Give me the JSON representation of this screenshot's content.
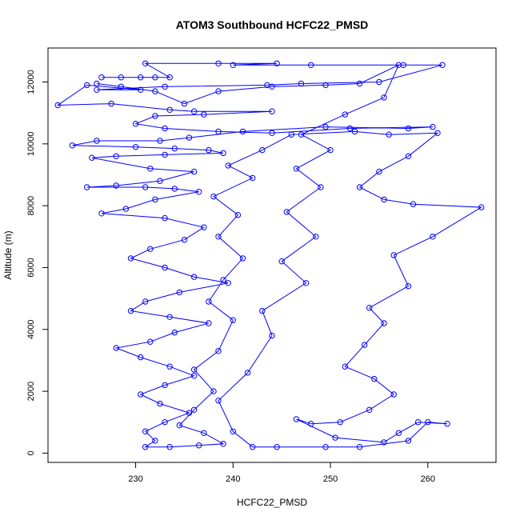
{
  "chart_data": {
    "type": "line",
    "title": "ATOM3 Southbound HCFC22_PMSD",
    "xlabel": "HCFC22_PMSD",
    "ylabel": "Altitude (m)",
    "xlim": [
      221,
      267
    ],
    "ylim": [
      -300,
      13100
    ],
    "xticks": [
      230,
      240,
      250,
      260
    ],
    "yticks": [
      0,
      2000,
      4000,
      6000,
      8000,
      10000,
      12000
    ],
    "grid": false,
    "series_color": "#0000ff",
    "marker": "open-circle",
    "series": [
      {
        "name": "",
        "points": [
          [
            232.0,
            12150
          ],
          [
            226.5,
            12150
          ],
          [
            228.5,
            12150
          ],
          [
            230.5,
            12150
          ],
          [
            233.5,
            12150
          ],
          [
            231.0,
            12600
          ],
          [
            238.5,
            12600
          ],
          [
            244.5,
            12600
          ],
          [
            240.0,
            12550
          ],
          [
            248.0,
            12550
          ],
          [
            257.5,
            12550
          ],
          [
            261.5,
            12550
          ],
          [
            255.0,
            12000
          ],
          [
            247.0,
            11950
          ],
          [
            243.5,
            11900
          ],
          [
            233.0,
            11850
          ],
          [
            226.0,
            11750
          ],
          [
            230.5,
            11750
          ],
          [
            225.0,
            11900
          ],
          [
            222.0,
            11250
          ],
          [
            227.5,
            11300
          ],
          [
            233.5,
            11100
          ],
          [
            236.0,
            11050
          ],
          [
            244.0,
            11050
          ],
          [
            237.0,
            10950
          ],
          [
            232.0,
            10900
          ],
          [
            230.0,
            10650
          ],
          [
            233.0,
            10500
          ],
          [
            238.5,
            10400
          ],
          [
            244.0,
            10350
          ],
          [
            252.0,
            10500
          ],
          [
            260.5,
            10550
          ],
          [
            258.0,
            10500
          ],
          [
            249.5,
            10550
          ],
          [
            241.0,
            10400
          ],
          [
            235.5,
            10200
          ],
          [
            232.5,
            10100
          ],
          [
            226.0,
            10100
          ],
          [
            223.5,
            9950
          ],
          [
            230.0,
            9900
          ],
          [
            234.0,
            9850
          ],
          [
            237.5,
            9800
          ],
          [
            239.0,
            9700
          ],
          [
            233.0,
            9650
          ],
          [
            228.0,
            9600
          ],
          [
            225.5,
            9550
          ],
          [
            231.5,
            9200
          ],
          [
            236.0,
            9100
          ],
          [
            232.5,
            8800
          ],
          [
            228.0,
            8650
          ],
          [
            225.0,
            8600
          ],
          [
            231.0,
            8600
          ],
          [
            234.0,
            8550
          ],
          [
            236.5,
            8450
          ],
          [
            232.0,
            8200
          ],
          [
            229.0,
            7900
          ],
          [
            226.5,
            7750
          ],
          [
            233.0,
            7600
          ],
          [
            237.0,
            7300
          ],
          [
            235.0,
            6900
          ],
          [
            231.5,
            6600
          ],
          [
            229.5,
            6300
          ],
          [
            233.0,
            6000
          ],
          [
            236.0,
            5700
          ],
          [
            239.5,
            5500
          ],
          [
            234.5,
            5200
          ],
          [
            231.0,
            4900
          ],
          [
            229.5,
            4600
          ],
          [
            233.5,
            4400
          ],
          [
            237.5,
            4200
          ],
          [
            234.0,
            3900
          ],
          [
            231.5,
            3600
          ],
          [
            228.0,
            3400
          ],
          [
            230.5,
            3100
          ],
          [
            233.5,
            2800
          ],
          [
            236.0,
            2500
          ],
          [
            233.0,
            2200
          ],
          [
            230.5,
            1900
          ],
          [
            232.5,
            1600
          ],
          [
            235.5,
            1300
          ],
          [
            233.0,
            1000
          ],
          [
            231.0,
            700
          ],
          [
            232.0,
            400
          ],
          [
            231.0,
            200
          ],
          [
            233.5,
            200
          ],
          [
            236.5,
            250
          ],
          [
            239.0,
            300
          ],
          [
            237.0,
            650
          ],
          [
            234.5,
            900
          ],
          [
            236.0,
            1400
          ],
          [
            238.0,
            2000
          ],
          [
            236.0,
            2700
          ],
          [
            238.5,
            3300
          ],
          [
            240.0,
            4300
          ],
          [
            237.5,
            4900
          ],
          [
            239.0,
            5600
          ],
          [
            241.0,
            6300
          ],
          [
            238.5,
            7000
          ],
          [
            240.5,
            7700
          ],
          [
            238.0,
            8300
          ],
          [
            242.0,
            8900
          ],
          [
            239.5,
            9300
          ],
          [
            243.0,
            9800
          ],
          [
            246.0,
            10300
          ],
          [
            252.5,
            10400
          ],
          [
            256.0,
            10300
          ],
          [
            261.0,
            10350
          ],
          [
            258.0,
            9600
          ],
          [
            255.0,
            9100
          ],
          [
            253.0,
            8600
          ],
          [
            255.5,
            8200
          ],
          [
            258.5,
            8050
          ],
          [
            265.5,
            7950
          ],
          [
            260.5,
            7000
          ],
          [
            256.5,
            6400
          ],
          [
            258.0,
            5400
          ],
          [
            254.0,
            4700
          ],
          [
            255.5,
            4200
          ],
          [
            253.5,
            3500
          ],
          [
            251.5,
            2800
          ],
          [
            254.5,
            2400
          ],
          [
            256.5,
            1900
          ],
          [
            254.0,
            1400
          ],
          [
            251.0,
            1000
          ],
          [
            248.0,
            950
          ],
          [
            246.5,
            1100
          ],
          [
            250.5,
            500
          ],
          [
            255.5,
            350
          ],
          [
            257.0,
            650
          ],
          [
            259.0,
            1000
          ],
          [
            262.0,
            950
          ],
          [
            260.0,
            1000
          ],
          [
            258.0,
            400
          ],
          [
            253.0,
            200
          ],
          [
            249.5,
            200
          ],
          [
            244.5,
            200
          ],
          [
            242.0,
            200
          ],
          [
            240.0,
            700
          ],
          [
            238.5,
            1700
          ],
          [
            241.5,
            2600
          ],
          [
            244.0,
            3800
          ],
          [
            243.0,
            4600
          ],
          [
            247.5,
            5500
          ],
          [
            245.0,
            6200
          ],
          [
            248.5,
            7000
          ],
          [
            245.5,
            7800
          ],
          [
            249.0,
            8600
          ],
          [
            246.5,
            9200
          ],
          [
            250.0,
            9800
          ],
          [
            247.0,
            10300
          ],
          [
            251.5,
            10950
          ],
          [
            255.5,
            11500
          ],
          [
            257.0,
            12550
          ],
          [
            253.0,
            11950
          ],
          [
            249.5,
            11900
          ],
          [
            244.0,
            11850
          ],
          [
            238.5,
            11700
          ],
          [
            235.0,
            11300
          ],
          [
            232.0,
            11700
          ],
          [
            228.5,
            11850
          ],
          [
            226.0,
            11950
          ]
        ]
      }
    ]
  }
}
